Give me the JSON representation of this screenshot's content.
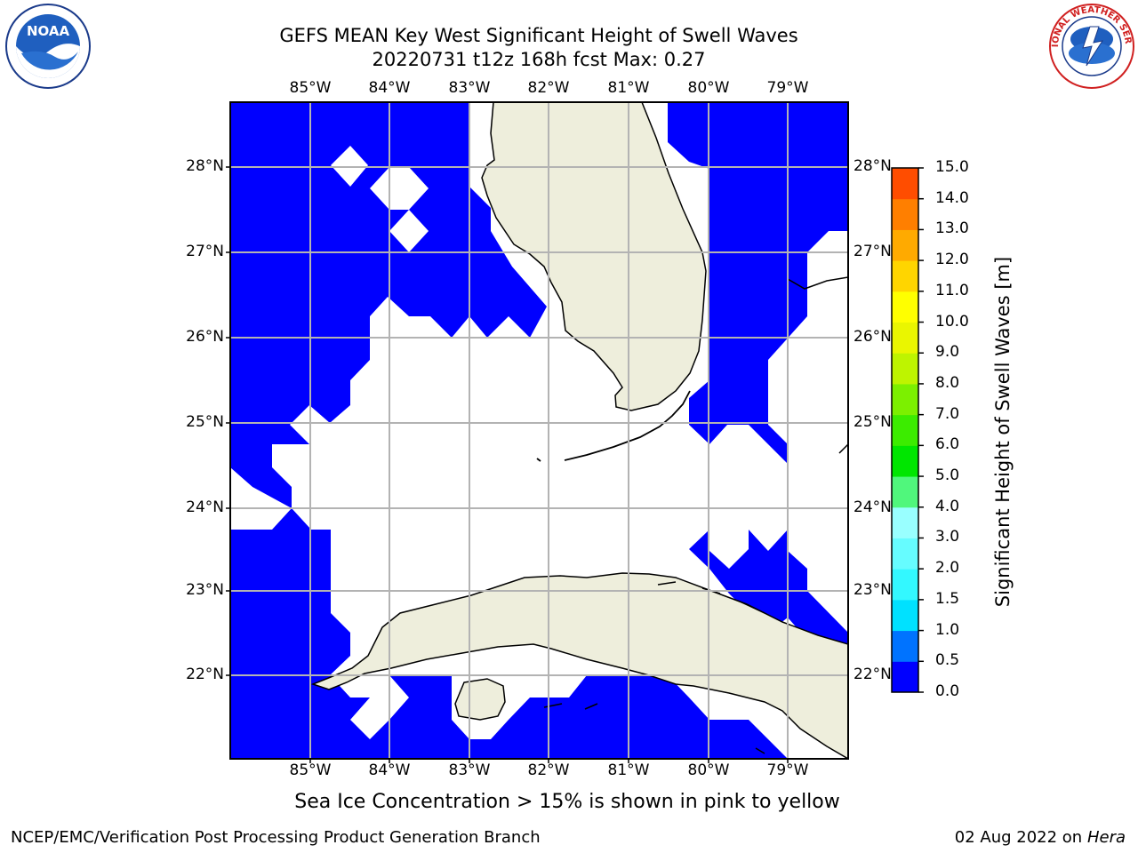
{
  "title": {
    "line1": "GEFS MEAN Key West Significant Height of Swell Waves",
    "line2": "20220731 t12z 168h fcst   Max: 0.27"
  },
  "map": {
    "longitude_labels": [
      "85°W",
      "84°W",
      "83°W",
      "82°W",
      "81°W",
      "80°W",
      "79°W"
    ],
    "latitude_labels": [
      "28°N",
      "27°N",
      "26°N",
      "25°N",
      "24°N",
      "23°N",
      "22°N"
    ],
    "colors": {
      "ocean_swell": "#0000ff",
      "land": "#eeeedc",
      "grid": "#b3b3b3",
      "coast": "#000000",
      "no_data": "#ffffff"
    }
  },
  "colorbar": {
    "title": "Significant Height of Swell Waves [m]",
    "tick_labels": [
      "0.0",
      "0.5",
      "1.0",
      "1.5",
      "2.0",
      "3.0",
      "4.0",
      "5.0",
      "6.0",
      "7.0",
      "8.0",
      "9.0",
      "10.0",
      "11.0",
      "12.0",
      "13.0",
      "14.0",
      "15.0"
    ],
    "colors": [
      "#0000ff",
      "#0073ff",
      "#00e1ff",
      "#33f8ff",
      "#66fcff",
      "#99ffff",
      "#50f77c",
      "#00e600",
      "#3cec00",
      "#7cf000",
      "#bef400",
      "#eaf600",
      "#ffff00",
      "#ffd500",
      "#ffaa00",
      "#ff7f00",
      "#ff4d00",
      "#ff0000"
    ]
  },
  "footnote": "Sea Ice Concentration > 15% is shown in pink to yellow",
  "credit": "NCEP/EMC/Verification Post Processing Product Generation Branch",
  "run_date": {
    "date": "02 Aug 2022 on",
    "machine": "Hera"
  },
  "logos": {
    "left": "NOAA",
    "right": "NATIONAL WEATHER SERVICE"
  }
}
